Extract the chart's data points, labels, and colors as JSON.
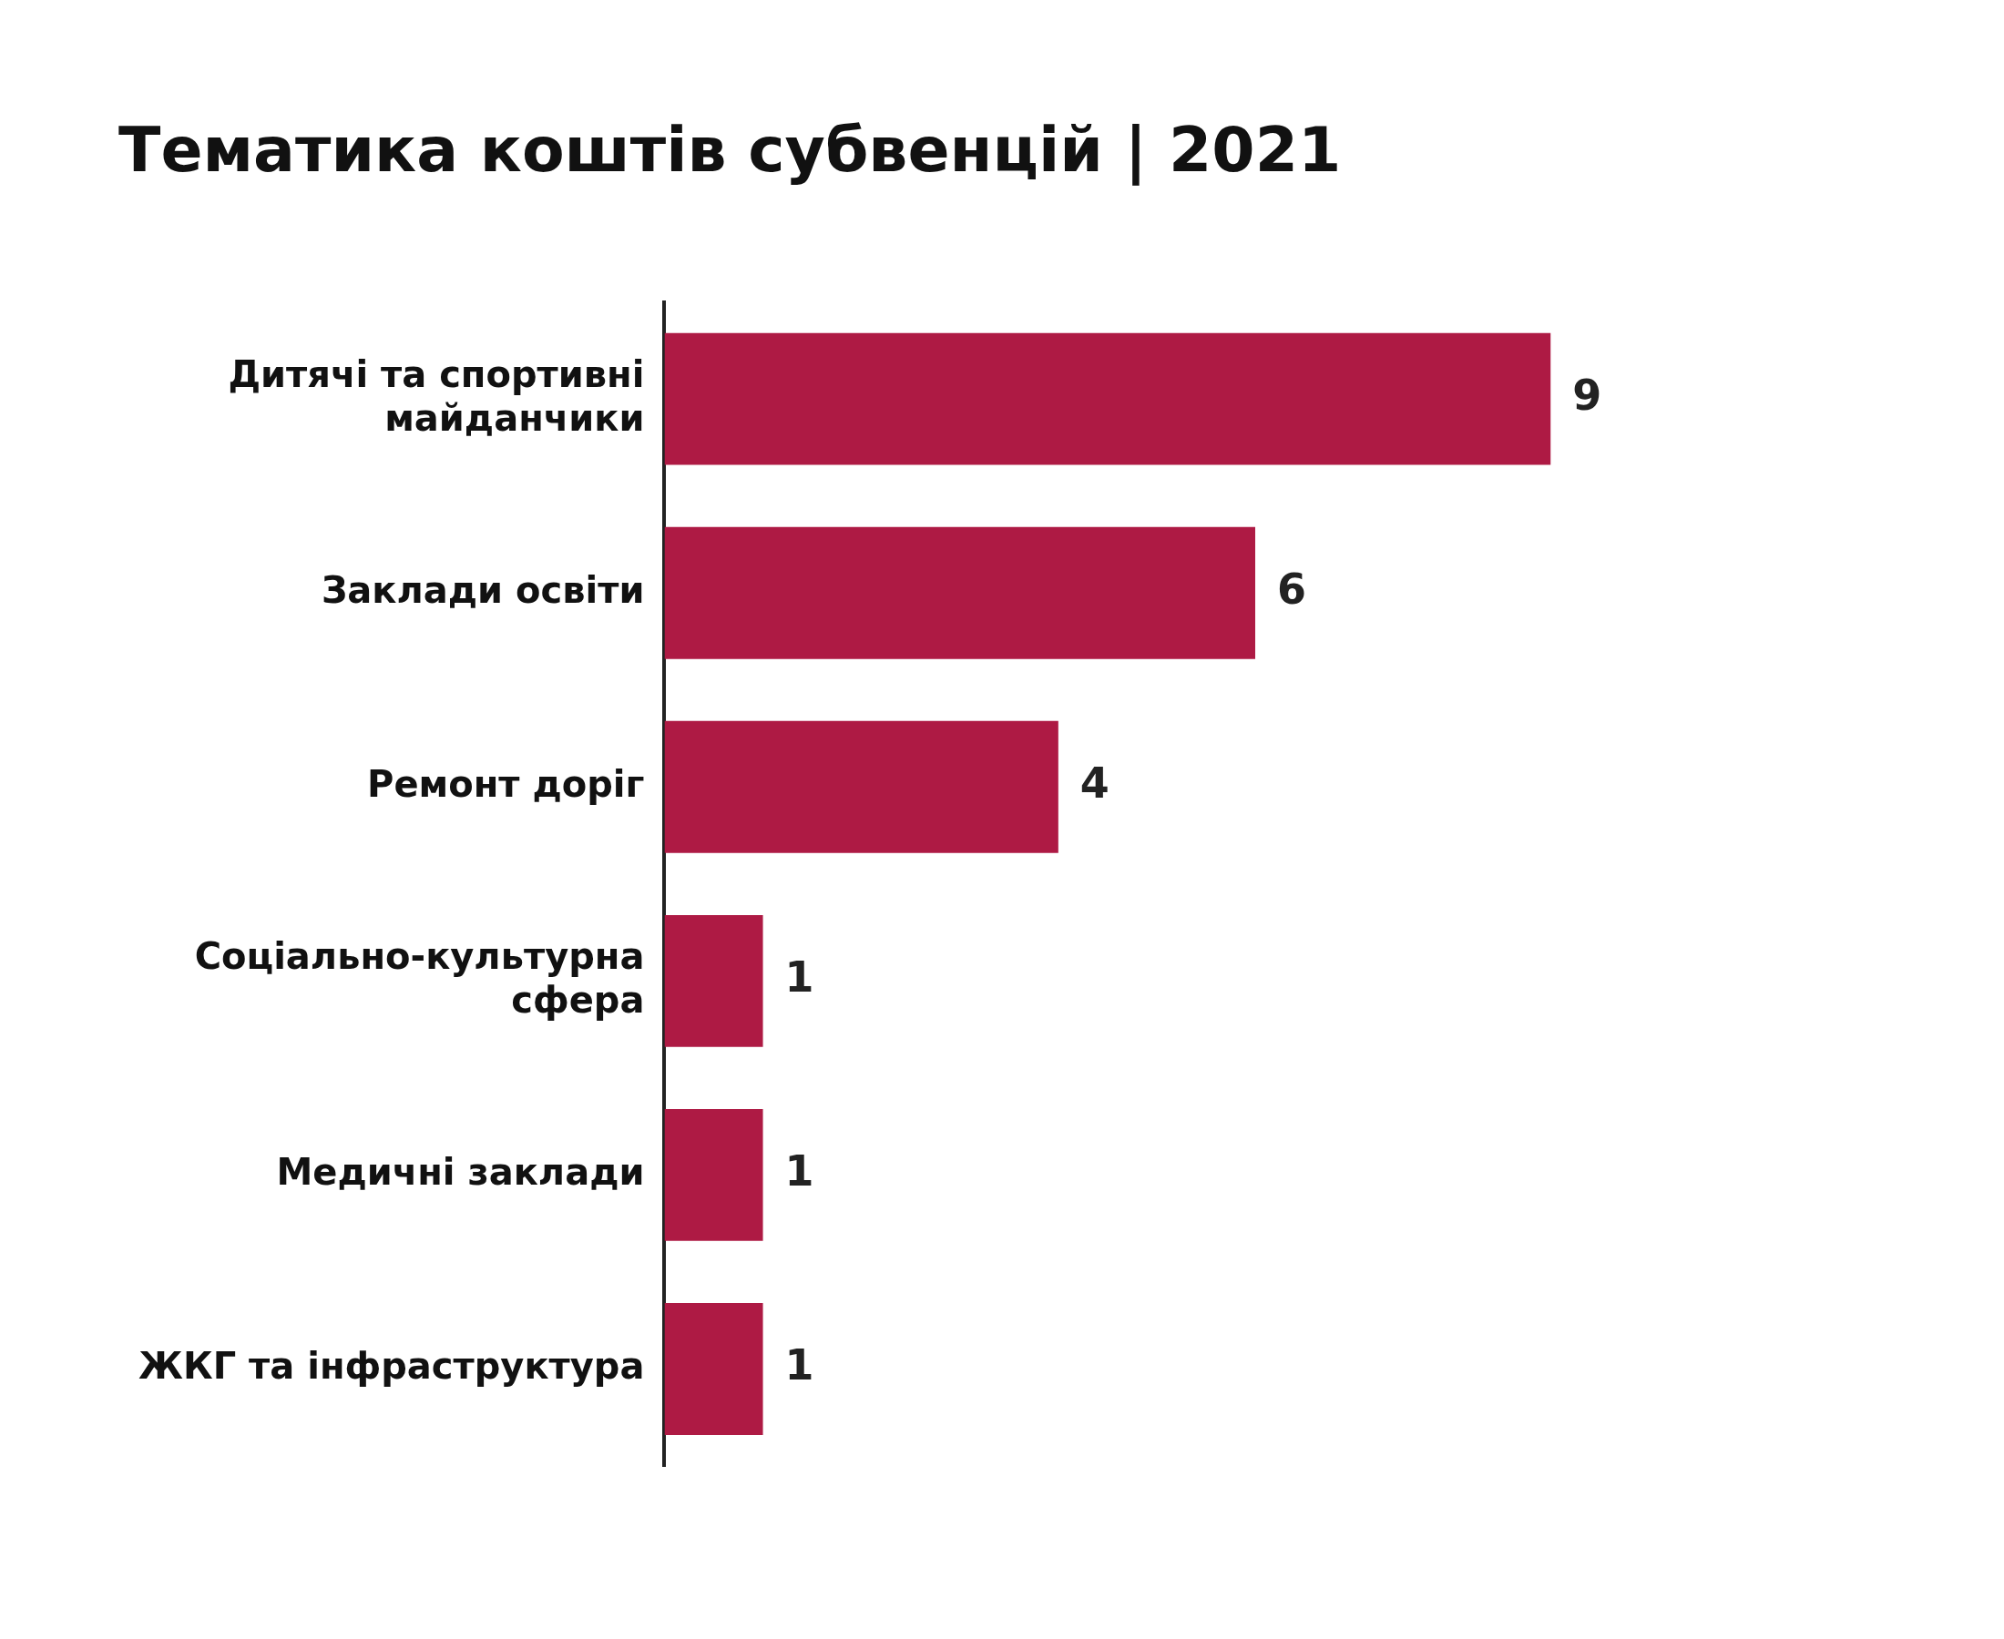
{
  "chart_data": {
    "type": "bar",
    "orientation": "horizontal",
    "title": "Тематика коштів субвенцій | 2021",
    "categories": [
      "Дитячі та спортивні майданчики",
      "Заклади освіти",
      "Ремонт доріг",
      "Соціально-культурна сфера",
      "Медичні заклади",
      "ЖКГ та інфраструктура"
    ],
    "values": [
      9,
      6,
      4,
      1,
      1,
      1
    ],
    "color": "#ae1a44",
    "data_labels": true,
    "grid": false,
    "legend": false
  }
}
